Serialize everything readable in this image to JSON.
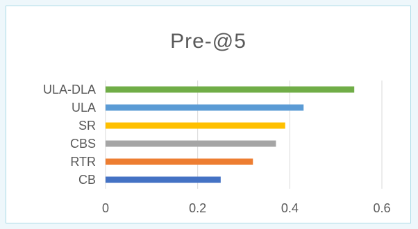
{
  "chart_data": {
    "type": "bar",
    "orientation": "horizontal",
    "title": "Pre-@5",
    "categories": [
      "CB",
      "RTR",
      "CBS",
      "SR",
      "ULA",
      "ULA-DLA"
    ],
    "values": [
      0.25,
      0.32,
      0.37,
      0.39,
      0.43,
      0.54
    ],
    "colors": [
      "#4472c4",
      "#ed7d31",
      "#a5a5a5",
      "#ffc000",
      "#5b9bd5",
      "#70ad47"
    ],
    "xlim": [
      0,
      0.6
    ],
    "xticks": [
      0,
      0.2,
      0.4,
      0.6
    ],
    "xtick_labels": [
      "0",
      "0.2",
      "0.4",
      "0.6"
    ],
    "grid": true,
    "legend": "none"
  }
}
